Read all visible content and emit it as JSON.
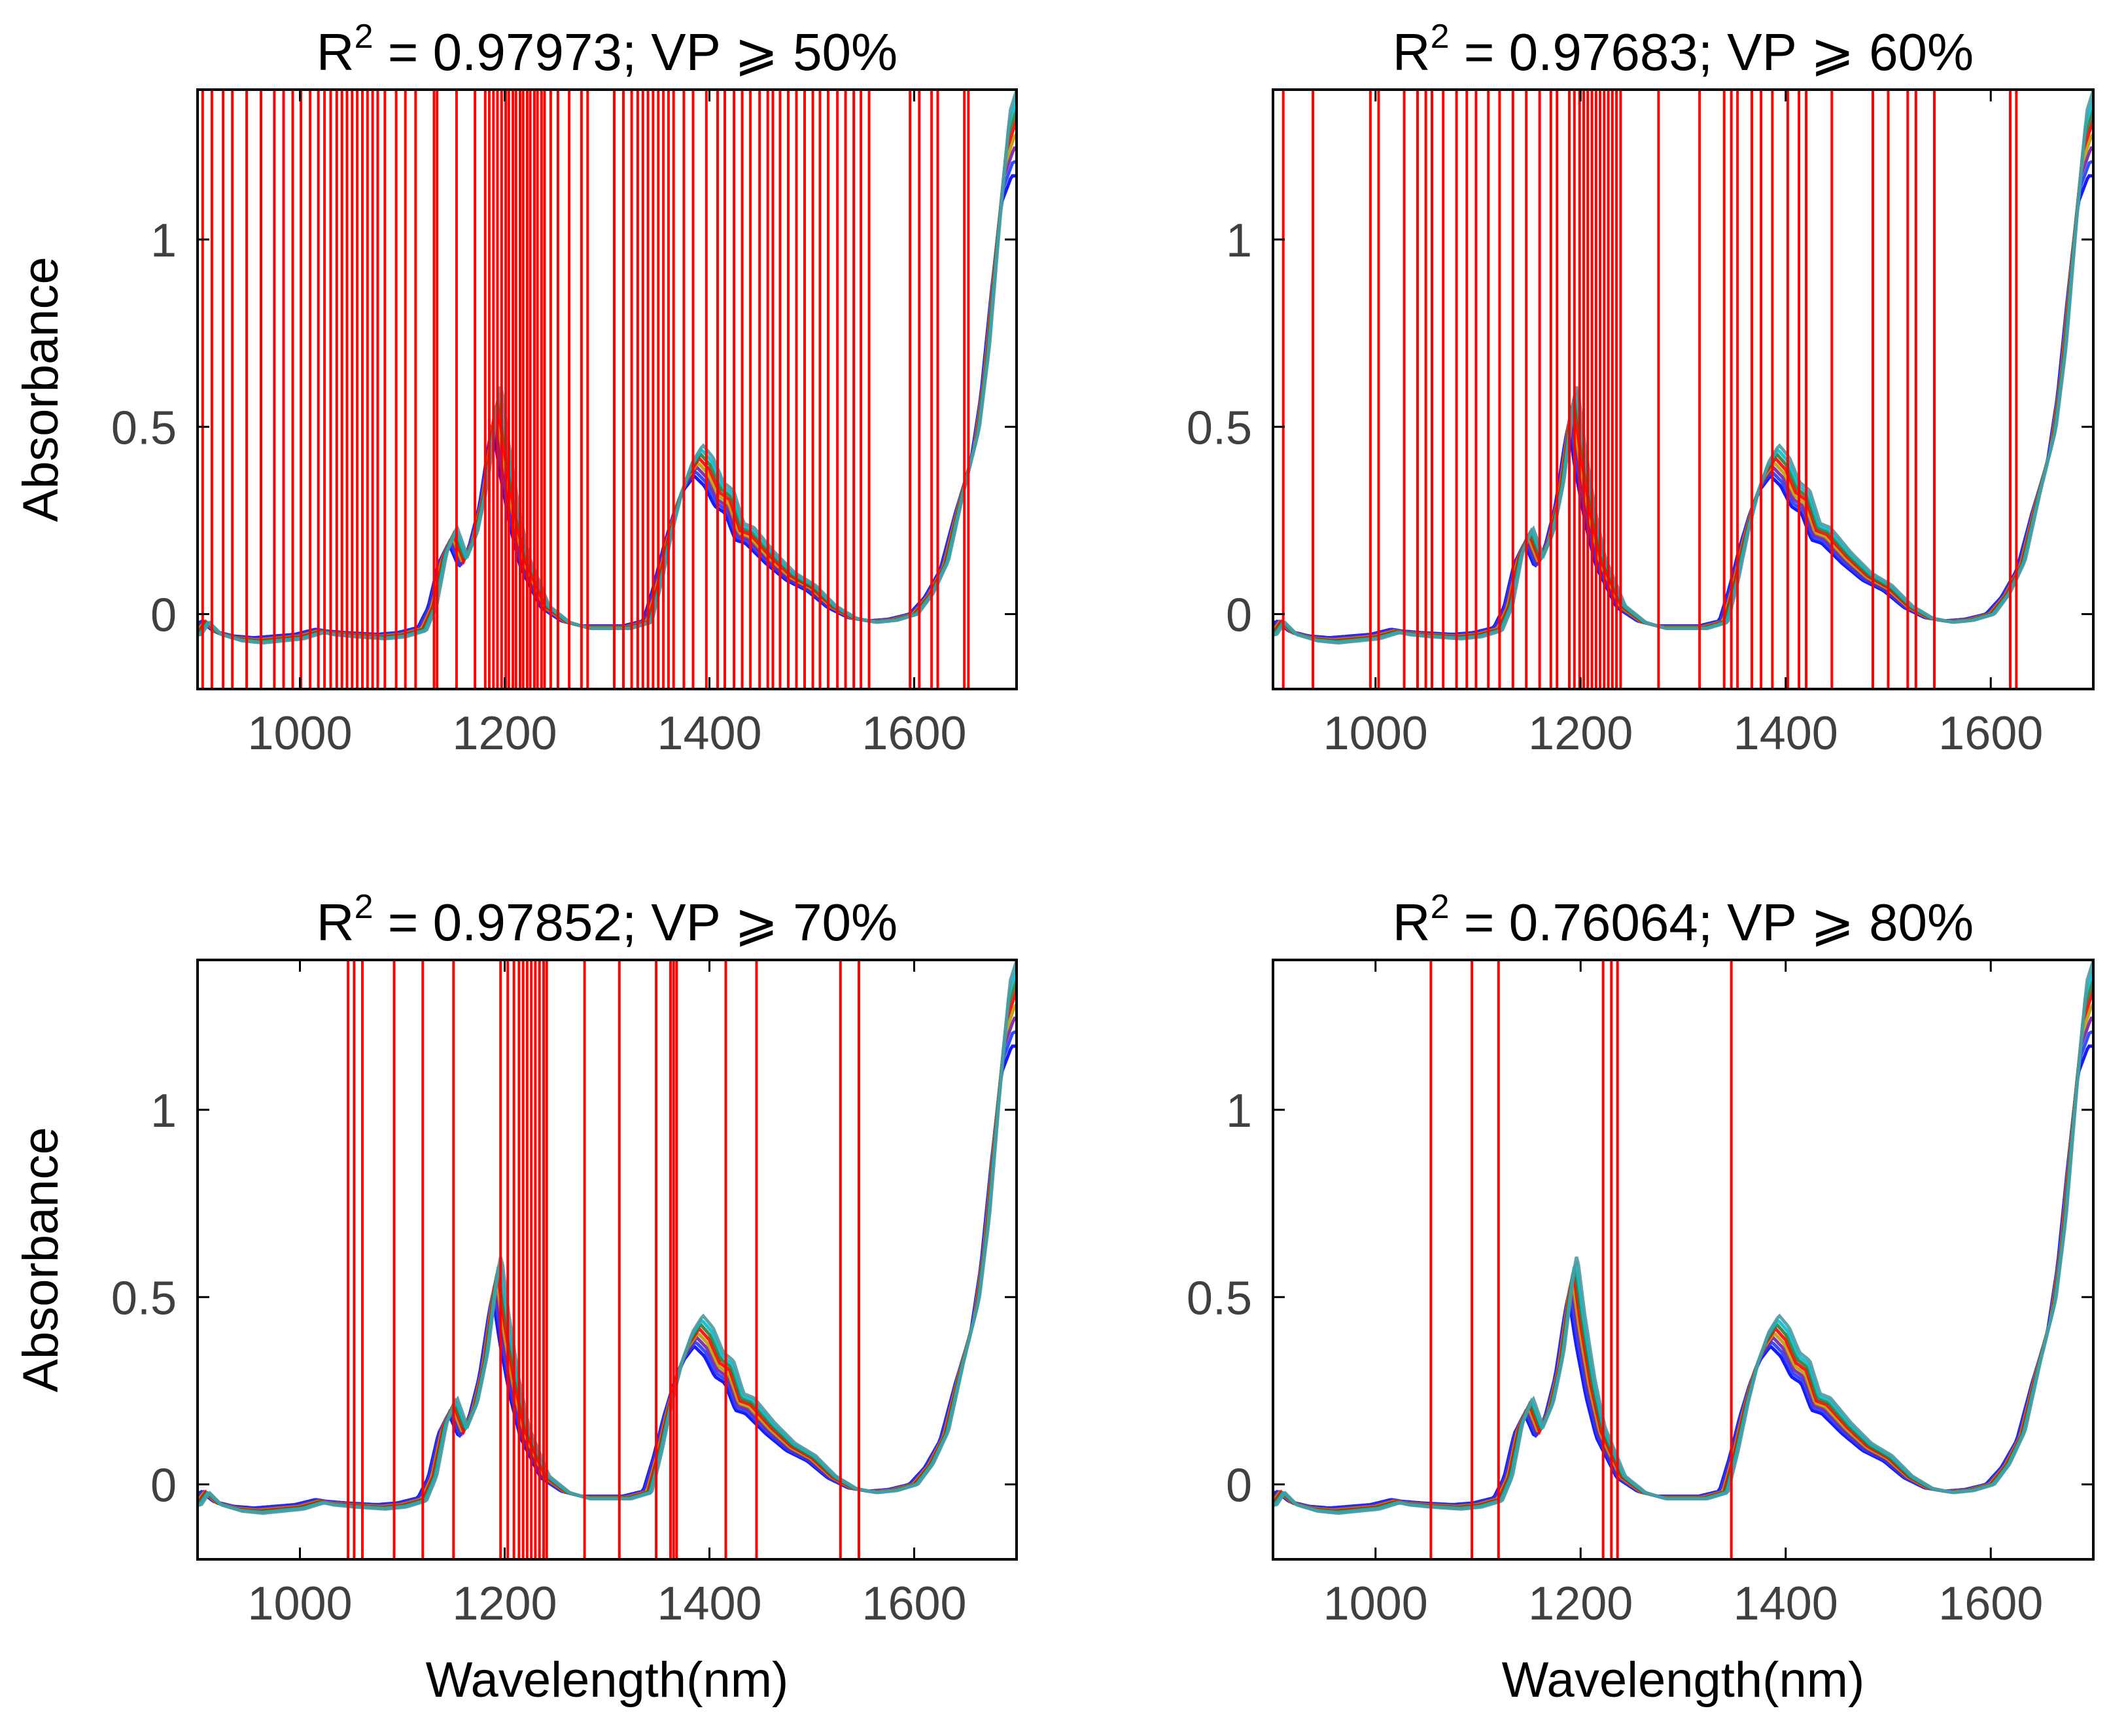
{
  "chart_data": [
    {
      "type": "line",
      "title": "R2 = 0.97973; VP ⩾ 50%",
      "title_parts": {
        "prefix": "R",
        "sup": "2",
        "rest": " = 0.97973; VP ⩾ 50%"
      },
      "xlabel": "",
      "ylabel": "Absorbance",
      "xlim": [
        900,
        1700
      ],
      "ylim": [
        -0.2,
        1.4
      ],
      "xticks": [
        1000,
        1200,
        1400,
        1600
      ],
      "xtick_labels": [
        "1000",
        "1200",
        "1400",
        "1600"
      ],
      "yticks": [
        0,
        0.5,
        1
      ],
      "ytick_labels": [
        "0",
        "0.5",
        "1"
      ],
      "selected_wavelengths": [
        905,
        914,
        925,
        934,
        948,
        962,
        975,
        984,
        993,
        1001,
        1010,
        1018,
        1024,
        1030,
        1036,
        1041,
        1046,
        1051,
        1056,
        1061,
        1066,
        1071,
        1076,
        1083,
        1094,
        1103,
        1113,
        1131,
        1134,
        1153,
        1171,
        1181,
        1185,
        1189,
        1193,
        1197,
        1201,
        1204,
        1208,
        1211,
        1215,
        1218,
        1222,
        1225,
        1229,
        1232,
        1236,
        1239,
        1245,
        1252,
        1263,
        1275,
        1281,
        1307,
        1316,
        1324,
        1330,
        1335,
        1340,
        1345,
        1350,
        1355,
        1360,
        1365,
        1375,
        1384,
        1397,
        1408,
        1415,
        1424,
        1432,
        1440,
        1449,
        1457,
        1462,
        1469,
        1477,
        1485,
        1493,
        1501,
        1508,
        1516,
        1525,
        1533,
        1541,
        1548,
        1556,
        1596,
        1605,
        1617,
        1623,
        1649,
        1653
      ]
    },
    {
      "type": "line",
      "title": "R2 = 0.97683; VP ⩾ 60%",
      "title_parts": {
        "prefix": "R",
        "sup": "2",
        "rest": " = 0.97683; VP ⩾ 60%"
      },
      "xlabel": "",
      "ylabel": "",
      "xlim": [
        900,
        1700
      ],
      "ylim": [
        -0.2,
        1.4
      ],
      "xticks": [
        1000,
        1200,
        1400,
        1600
      ],
      "xtick_labels": [
        "1000",
        "1200",
        "1400",
        "1600"
      ],
      "yticks": [
        0,
        0.5,
        1
      ],
      "ytick_labels": [
        "0",
        "0.5",
        "1"
      ],
      "selected_wavelengths": [
        910,
        939,
        995,
        1003,
        1028,
        1041,
        1049,
        1055,
        1066,
        1079,
        1089,
        1098,
        1110,
        1121,
        1134,
        1147,
        1160,
        1171,
        1177,
        1189,
        1194,
        1199,
        1203,
        1207,
        1211,
        1215,
        1219,
        1223,
        1227,
        1231,
        1235,
        1239,
        1276,
        1316,
        1340,
        1347,
        1353,
        1367,
        1376,
        1387,
        1402,
        1413,
        1420,
        1445,
        1485,
        1500,
        1519,
        1527,
        1545,
        1619,
        1625
      ]
    },
    {
      "type": "line",
      "title": "R2 = 0.97852; VP ⩾ 70%",
      "title_parts": {
        "prefix": "R",
        "sup": "2",
        "rest": " = 0.97852; VP ⩾ 70%"
      },
      "xlabel": "Wavelength(nm)",
      "ylabel": "Absorbance",
      "xlim": [
        900,
        1700
      ],
      "ylim": [
        -0.2,
        1.4
      ],
      "xticks": [
        1000,
        1200,
        1400,
        1600
      ],
      "xtick_labels": [
        "1000",
        "1200",
        "1400",
        "1600"
      ],
      "yticks": [
        0,
        0.5,
        1
      ],
      "ytick_labels": [
        "0",
        "0.5",
        "1"
      ],
      "selected_wavelengths": [
        1047,
        1053,
        1061,
        1092,
        1120,
        1150,
        1196,
        1203,
        1209,
        1214,
        1218,
        1222,
        1226,
        1230,
        1234,
        1238,
        1241,
        1278,
        1312,
        1348,
        1362,
        1365,
        1368,
        1416,
        1446,
        1528,
        1546
      ]
    },
    {
      "type": "line",
      "title": "R2 = 0.76064; VP ⩾ 80%",
      "title_parts": {
        "prefix": "R",
        "sup": "2",
        "rest": " = 0.76064; VP ⩾ 80%"
      },
      "xlabel": "Wavelength(nm)",
      "ylabel": "",
      "xlim": [
        900,
        1700
      ],
      "ylim": [
        -0.2,
        1.4
      ],
      "xticks": [
        1000,
        1200,
        1400,
        1600
      ],
      "xtick_labels": [
        "1000",
        "1200",
        "1400",
        "1600"
      ],
      "yticks": [
        0,
        0.5,
        1
      ],
      "ytick_labels": [
        "0",
        "0.5",
        "1"
      ],
      "selected_wavelengths": [
        1054,
        1094,
        1120,
        1222,
        1230,
        1236,
        1347
      ]
    }
  ],
  "spectrum": {
    "wavelengths": [
      900,
      908,
      920,
      940,
      960,
      980,
      1000,
      1020,
      1030,
      1050,
      1080,
      1100,
      1120,
      1130,
      1140,
      1150,
      1160,
      1170,
      1180,
      1190,
      1193,
      1200,
      1210,
      1220,
      1240,
      1260,
      1280,
      1300,
      1320,
      1340,
      1350,
      1360,
      1370,
      1380,
      1390,
      1400,
      1410,
      1420,
      1430,
      1440,
      1460,
      1480,
      1500,
      1520,
      1540,
      1560,
      1580,
      1600,
      1615,
      1630,
      1645,
      1660,
      1670,
      1680,
      1690,
      1700
    ],
    "absorbance": [
      -0.05,
      -0.02,
      -0.05,
      -0.065,
      -0.07,
      -0.065,
      -0.06,
      -0.045,
      -0.05,
      -0.055,
      -0.06,
      -0.055,
      -0.04,
      0.02,
      0.15,
      0.21,
      0.14,
      0.2,
      0.32,
      0.52,
      0.56,
      0.42,
      0.26,
      0.14,
      0.02,
      -0.02,
      -0.035,
      -0.035,
      -0.035,
      -0.02,
      0.08,
      0.2,
      0.3,
      0.37,
      0.41,
      0.38,
      0.32,
      0.3,
      0.22,
      0.21,
      0.15,
      0.1,
      0.07,
      0.02,
      -0.01,
      -0.02,
      -0.015,
      0.0,
      0.05,
      0.13,
      0.3,
      0.45,
      0.65,
      0.95,
      1.22,
      1.3
    ],
    "series_colors": [
      "#0000ff",
      "#1e3cff",
      "#7a1fa2",
      "#b8a000",
      "#ff0000",
      "#2e7d32",
      "#00bcd4",
      "#4c9aa0"
    ]
  },
  "selection_line_color": "#ff0000"
}
